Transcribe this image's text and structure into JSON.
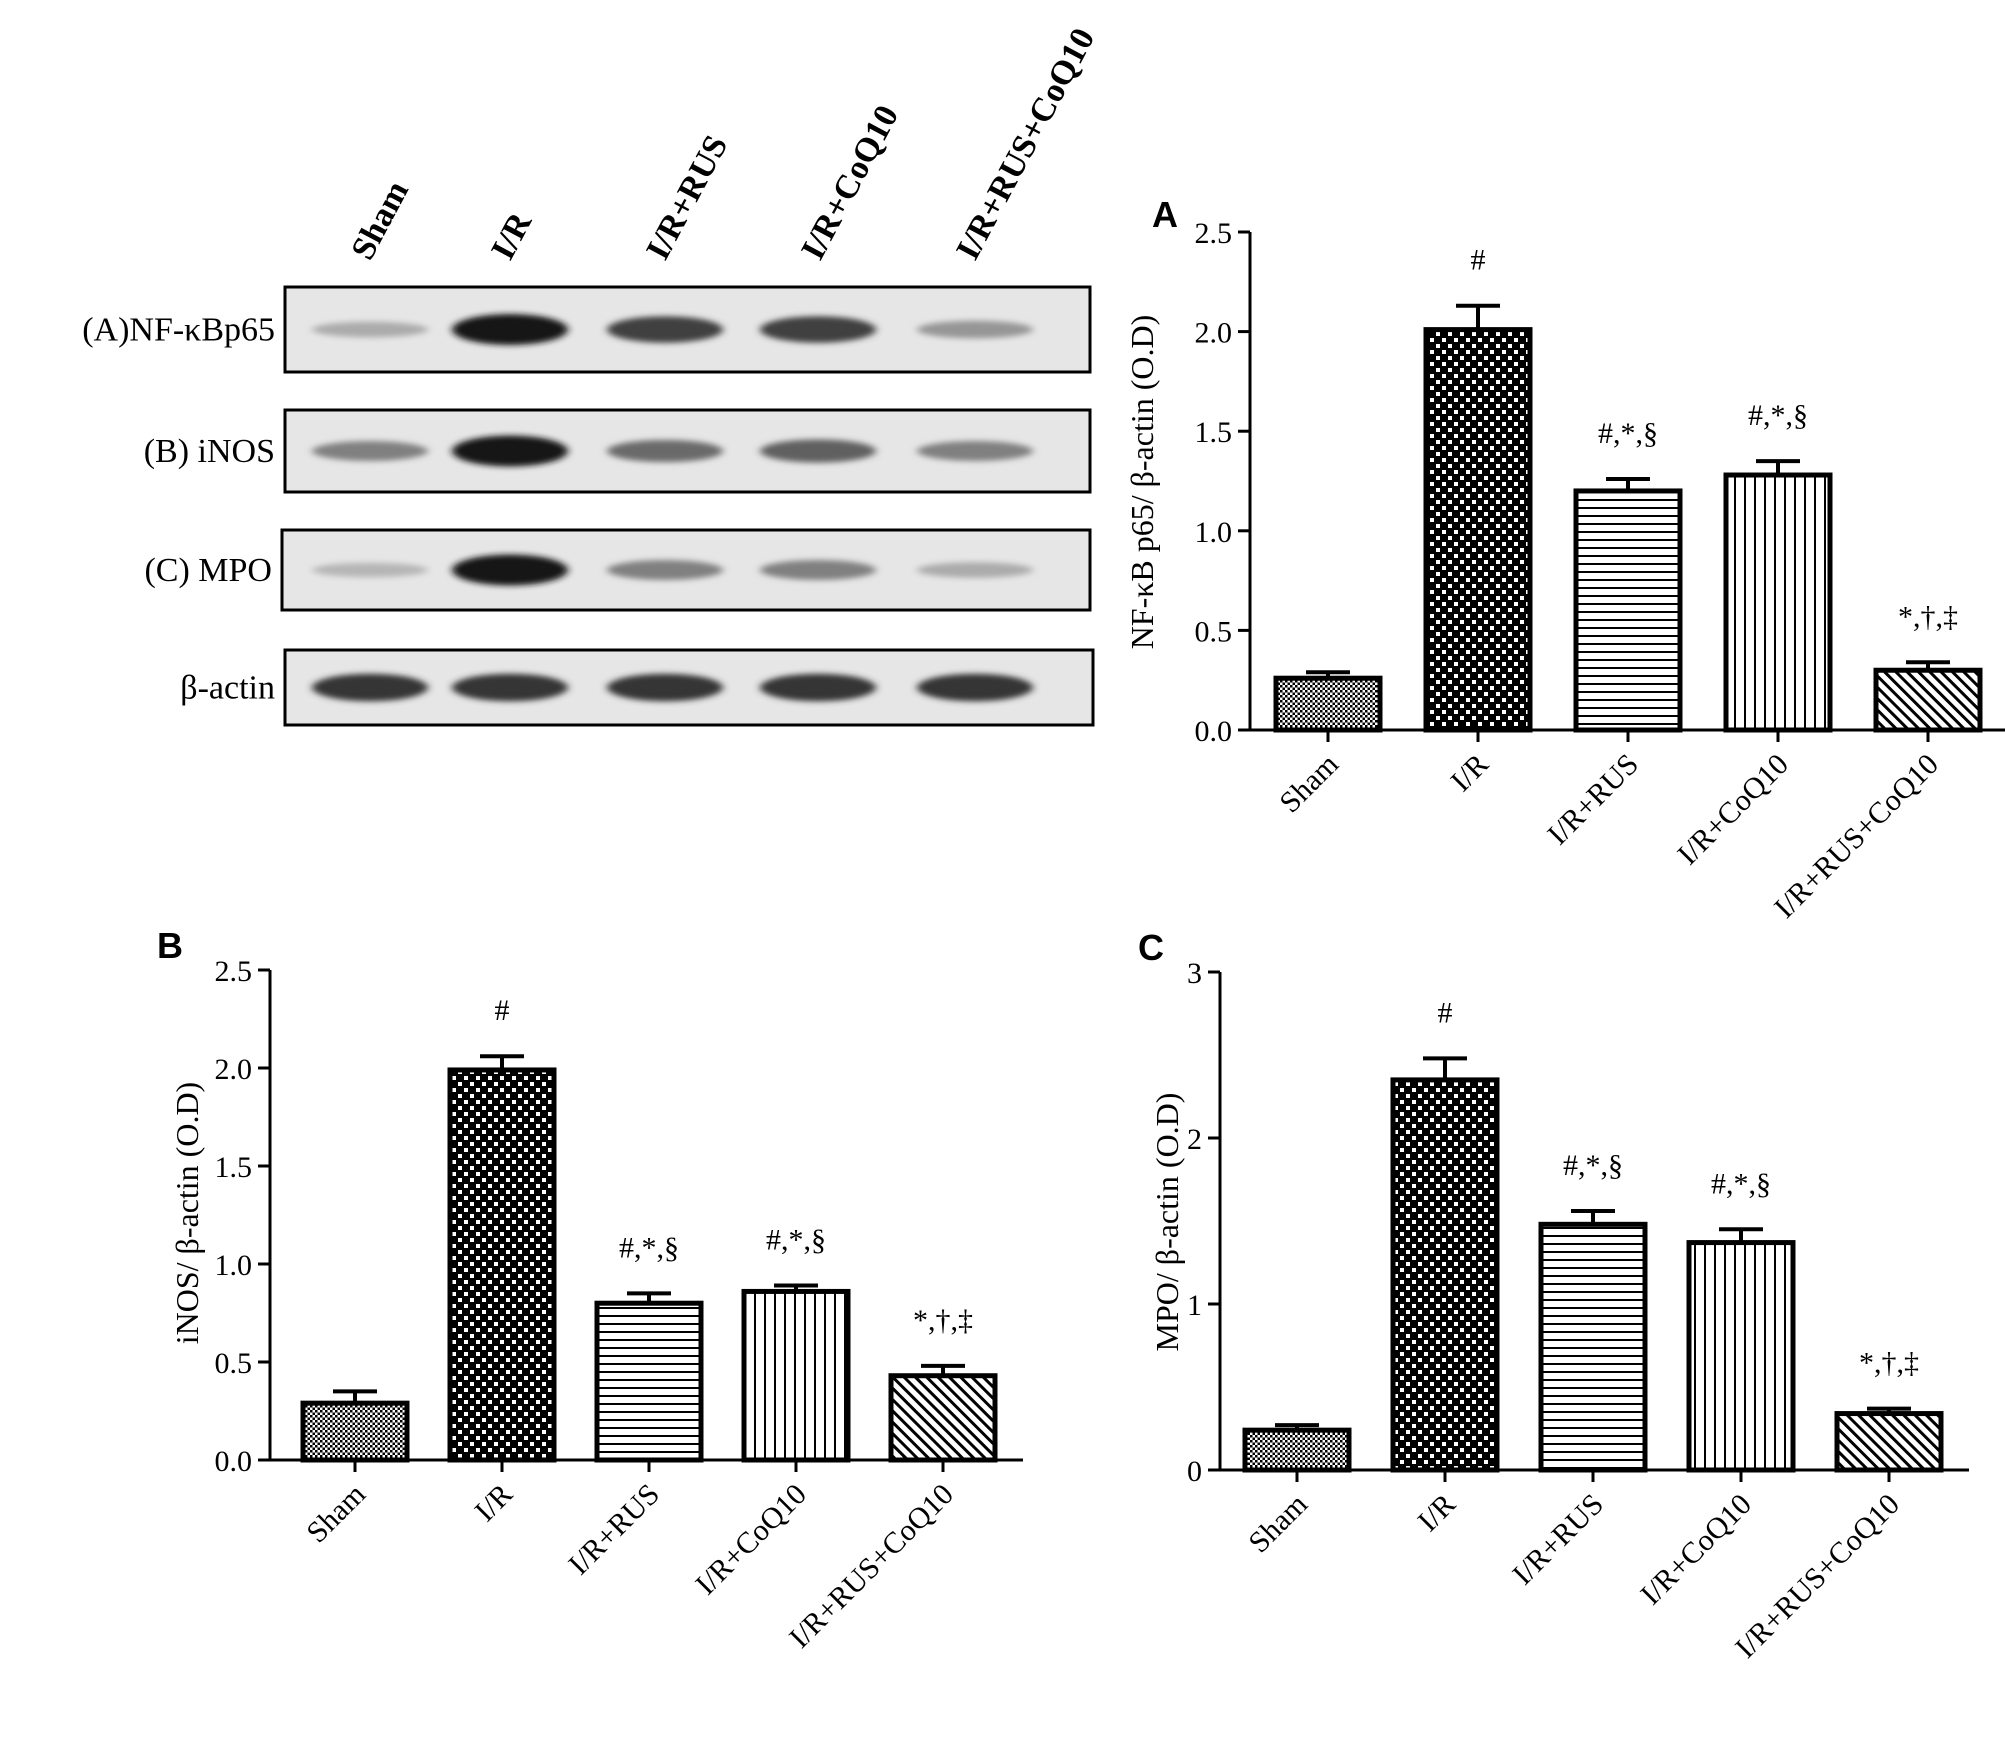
{
  "blot": {
    "lanes": [
      "Sham",
      "I/R",
      "I/R+RUS",
      "I/R+CoQ10",
      "I/R+RUS+CoQ10"
    ],
    "rows": [
      {
        "label": "(A)NF-κBp65",
        "intensity": [
          0.25,
          0.95,
          0.75,
          0.75,
          0.35
        ]
      },
      {
        "label": "(B) iNOS",
        "intensity": [
          0.45,
          0.95,
          0.55,
          0.6,
          0.45
        ]
      },
      {
        "label": "(C) MPO",
        "intensity": [
          0.2,
          0.95,
          0.45,
          0.45,
          0.25
        ]
      },
      {
        "label": "β-actin",
        "intensity": [
          0.8,
          0.8,
          0.8,
          0.8,
          0.8
        ]
      }
    ]
  },
  "patterns": {
    "fills": [
      "dense-dots",
      "checker",
      "h-lines",
      "v-lines",
      "diagonal"
    ]
  },
  "chart_data": [
    {
      "type": "bar",
      "panel": "A",
      "categories": [
        "Sham",
        "I/R",
        "I/R+RUS",
        "I/R+CoQ10",
        "I/R+RUS+CoQ10"
      ],
      "values": [
        0.26,
        2.01,
        1.2,
        1.28,
        0.3
      ],
      "errors": [
        0.03,
        0.12,
        0.06,
        0.07,
        0.04
      ],
      "annotations": [
        "",
        "#",
        "#,*,§",
        "#,*,§",
        "*,†,‡"
      ],
      "ylabel": "NF-κB p65/ β-actin (O.D)",
      "xlabel": "",
      "ylim": [
        0,
        2.5
      ],
      "yticks": [
        "0.0",
        "0.5",
        "1.0",
        "1.5",
        "2.0",
        "2.5"
      ]
    },
    {
      "type": "bar",
      "panel": "B",
      "categories": [
        "Sham",
        "I/R",
        "I/R+RUS",
        "I/R+CoQ10",
        "I/R+RUS+CoQ10"
      ],
      "values": [
        0.29,
        1.99,
        0.8,
        0.86,
        0.43
      ],
      "errors": [
        0.06,
        0.07,
        0.05,
        0.03,
        0.05
      ],
      "annotations": [
        "",
        "#",
        "#,*,§",
        "#,*,§",
        "*,†,‡"
      ],
      "ylabel": "iNOS/ β-actin (O.D)",
      "xlabel": "",
      "ylim": [
        0,
        2.5
      ],
      "yticks": [
        "0.0",
        "0.5",
        "1.0",
        "1.5",
        "2.0",
        "2.5"
      ]
    },
    {
      "type": "bar",
      "panel": "C",
      "categories": [
        "Sham",
        "I/R",
        "I/R+RUS",
        "I/R+CoQ10",
        "I/R+RUS+CoQ10"
      ],
      "values": [
        0.24,
        2.35,
        1.48,
        1.37,
        0.34
      ],
      "errors": [
        0.03,
        0.13,
        0.08,
        0.08,
        0.03
      ],
      "annotations": [
        "",
        "#",
        "#,*,§",
        "#,*,§",
        "*,†,‡"
      ],
      "ylabel": "MPO/ β-actin (O.D)",
      "xlabel": "",
      "ylim": [
        0,
        3
      ],
      "yticks": [
        "0",
        "1",
        "2",
        "3"
      ]
    }
  ]
}
